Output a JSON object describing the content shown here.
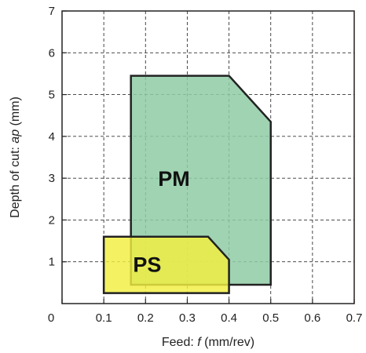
{
  "chart_data": {
    "type": "area",
    "xlabel_prefix": "Feed: ",
    "xlabel_var": "f",
    "xlabel_suffix": " (mm/rev)",
    "ylabel_prefix": "Depth of cut: ",
    "ylabel_var": "ap",
    "ylabel_suffix": " (mm)",
    "xlim": [
      0,
      0.7
    ],
    "ylim": [
      0,
      7
    ],
    "x_ticks": [
      "0",
      "0.1",
      "0.2",
      "0.3",
      "0.4",
      "0.5",
      "0.6",
      "0.7"
    ],
    "y_ticks": [
      "1",
      "2",
      "3",
      "4",
      "5",
      "6",
      "7"
    ],
    "grid": true,
    "regions": [
      {
        "name": "PM",
        "color": "#8fcba4",
        "opacity": 0.85,
        "label_at": [
          0.23,
          3.0
        ],
        "points": [
          [
            0.165,
            0.45
          ],
          [
            0.165,
            5.45
          ],
          [
            0.4,
            5.45
          ],
          [
            0.5,
            4.35
          ],
          [
            0.5,
            0.45
          ]
        ]
      },
      {
        "name": "PS",
        "color": "#f2ef3f",
        "opacity": 0.82,
        "label_at": [
          0.17,
          0.95
        ],
        "points": [
          [
            0.1,
            0.25
          ],
          [
            0.1,
            1.6
          ],
          [
            0.35,
            1.6
          ],
          [
            0.4,
            1.05
          ],
          [
            0.4,
            0.25
          ]
        ]
      }
    ]
  }
}
